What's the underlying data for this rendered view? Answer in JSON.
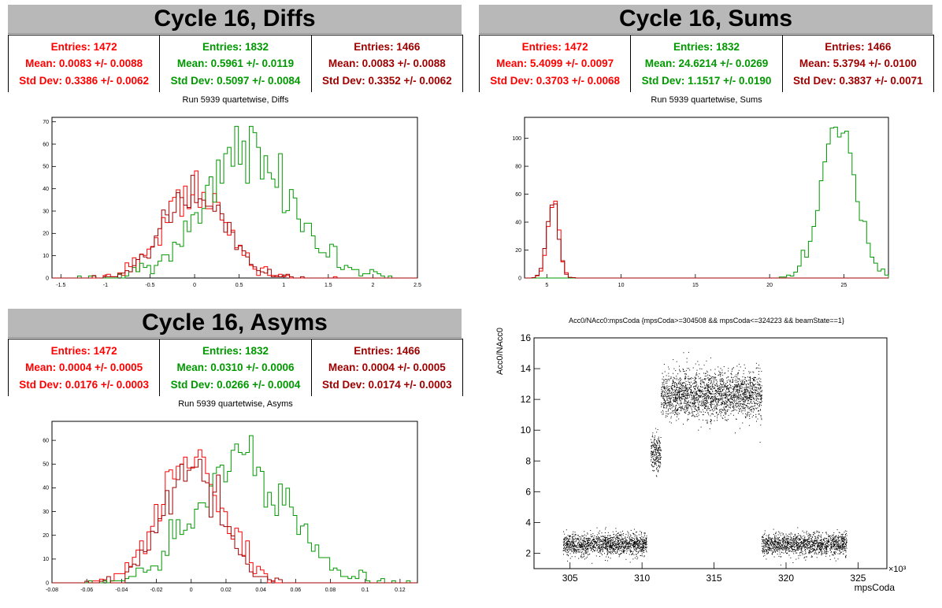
{
  "colors": {
    "c1": "#ff0000",
    "c2": "#009900",
    "c3": "#a00000"
  },
  "diffs": {
    "title": "Cycle 16, Diffs",
    "subtitle": "Run 5939 quartetwise, Diffs",
    "stats": [
      {
        "entries": "Entries: 1472",
        "mean": "Mean: 0.0083 +/- 0.0088",
        "std": "Std Dev: 0.3386 +/- 0.0062"
      },
      {
        "entries": "Entries: 1832",
        "mean": "Mean: 0.5961 +/- 0.0119",
        "std": "Std Dev: 0.5097 +/- 0.0084"
      },
      {
        "entries": "Entries: 1466",
        "mean": "Mean: 0.0083 +/- 0.0088",
        "std": "Std Dev: 0.3352 +/- 0.0062"
      }
    ]
  },
  "sums": {
    "title": "Cycle 16, Sums",
    "subtitle": "Run 5939 quartetwise, Sums",
    "stats": [
      {
        "entries": "Entries: 1472",
        "mean": "Mean: 5.4099 +/- 0.0097",
        "std": "Std Dev: 0.3703 +/- 0.0068"
      },
      {
        "entries": "Entries: 1832",
        "mean": "Mean: 24.6214 +/- 0.0269",
        "std": "Std Dev: 1.1517 +/- 0.0190"
      },
      {
        "entries": "Entries: 1466",
        "mean": "Mean: 5.3794 +/- 0.0100",
        "std": "Std Dev: 0.3837 +/- 0.0071"
      }
    ]
  },
  "asyms": {
    "title": "Cycle 16, Asyms",
    "subtitle": "Run 5939 quartetwise, Asyms",
    "stats": [
      {
        "entries": "Entries: 1472",
        "mean": "Mean: 0.0004 +/- 0.0005",
        "std": "Std Dev: 0.0176 +/- 0.0003"
      },
      {
        "entries": "Entries: 1832",
        "mean": "Mean: 0.0310 +/- 0.0006",
        "std": "Std Dev: 0.0266 +/- 0.0004"
      },
      {
        "entries": "Entries: 1466",
        "mean": "Mean: 0.0004 +/- 0.0005",
        "std": "Std Dev: 0.0174 +/- 0.0003"
      }
    ]
  },
  "scatter": {
    "title": "Acc0/NAcc0:mpsCoda {mpsCoda>=304508 && mpsCoda<=324223 && beamState==1}",
    "xlabel": "mpsCoda",
    "ylabel": "Acc0/NAcc0",
    "exponent": "×10³"
  },
  "chart_data": [
    {
      "type": "histogram",
      "xlim": [
        -1.6,
        2.5
      ],
      "ylim": [
        0,
        72
      ],
      "xticks": [
        -1.5,
        -1,
        -0.5,
        0,
        0.5,
        1,
        1.5,
        2,
        2.5
      ],
      "xtick_labels": [
        "-1.5",
        "-1",
        "-0.5",
        "0",
        "0.5",
        "1",
        "1.5",
        "2",
        "2.5"
      ],
      "yticks": [
        0,
        10,
        20,
        30,
        40,
        50,
        60,
        70
      ],
      "series": [
        {
          "color": "#ff0000",
          "mean": 0.0083,
          "std": 0.3386,
          "entries": 1472,
          "peak": 48
        },
        {
          "color": "#009900",
          "mean": 0.5961,
          "std": 0.5097,
          "entries": 1832,
          "peak": 68
        },
        {
          "color": "#a00000",
          "mean": 0.0083,
          "std": 0.3352,
          "entries": 1466,
          "peak": 46
        }
      ]
    },
    {
      "type": "histogram",
      "xlim": [
        3.5,
        28
      ],
      "ylim": [
        0,
        115
      ],
      "xticks": [
        5,
        10,
        15,
        20,
        25
      ],
      "xtick_labels": [
        "5",
        "10",
        "15",
        "20",
        "25"
      ],
      "yticks": [
        0,
        20,
        40,
        60,
        80,
        100
      ],
      "series": [
        {
          "color": "#ff0000",
          "mean": 5.4099,
          "std": 0.3703,
          "entries": 1472,
          "peak": 55
        },
        {
          "color": "#009900",
          "mean": 24.6214,
          "std": 1.1517,
          "entries": 1832,
          "peak": 108
        },
        {
          "color": "#a00000",
          "mean": 5.3794,
          "std": 0.3837,
          "entries": 1466,
          "peak": 53
        }
      ]
    },
    {
      "type": "histogram",
      "xlim": [
        -0.08,
        0.13
      ],
      "ylim": [
        0,
        68
      ],
      "xticks": [
        -0.08,
        -0.06,
        -0.04,
        -0.02,
        0,
        0.02,
        0.04,
        0.06,
        0.08,
        0.1,
        0.12
      ],
      "xtick_labels": [
        "-0.08",
        "-0.06",
        "-0.04",
        "-0.02",
        "0",
        "0.02",
        "0.04",
        "0.06",
        "0.08",
        "0.1",
        "0.12"
      ],
      "yticks": [
        0,
        10,
        20,
        30,
        40,
        50,
        60
      ],
      "series": [
        {
          "color": "#ff0000",
          "mean": 0.0004,
          "std": 0.0176,
          "entries": 1472,
          "peak": 56
        },
        {
          "color": "#009900",
          "mean": 0.031,
          "std": 0.0266,
          "entries": 1832,
          "peak": 62
        },
        {
          "color": "#a00000",
          "mean": 0.0004,
          "std": 0.0174,
          "entries": 1466,
          "peak": 52
        }
      ]
    },
    {
      "type": "scatter",
      "xlim": [
        302.5,
        327
      ],
      "ylim": [
        1,
        16
      ],
      "xticks": [
        305,
        310,
        315,
        320,
        325
      ],
      "xtick_labels": [
        "305",
        "310",
        "315",
        "320",
        "325"
      ],
      "yticks": [
        2,
        4,
        6,
        8,
        10,
        12,
        14,
        16
      ],
      "ytick_labels": [
        "2",
        "4",
        "6",
        "8",
        "10",
        "12",
        "14",
        "16"
      ],
      "clusters": [
        {
          "x": [
            304.5,
            310.3
          ],
          "y_center": 2.6,
          "y_spread": 0.35,
          "n": 1400
        },
        {
          "x": [
            310.6,
            311.3
          ],
          "y_center": 8.6,
          "y_spread": 0.6,
          "n": 220
        },
        {
          "x": [
            311.3,
            318.3
          ],
          "y_center": 12.3,
          "y_spread": 0.75,
          "n": 2200
        },
        {
          "x": [
            318.3,
            324.2
          ],
          "y_center": 2.6,
          "y_spread": 0.35,
          "n": 1400
        }
      ]
    }
  ]
}
